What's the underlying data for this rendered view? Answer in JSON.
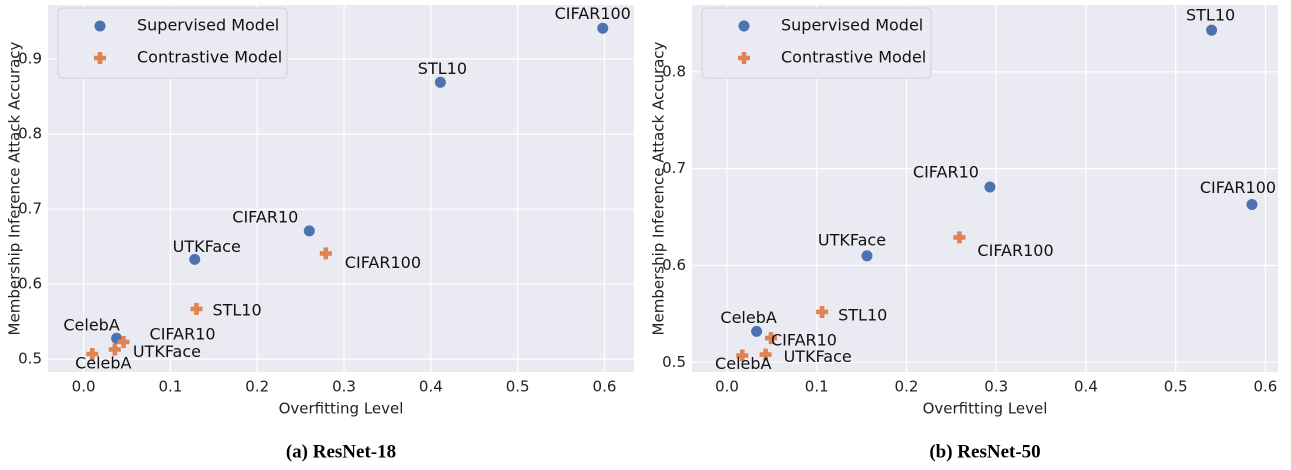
{
  "chart_data": [
    {
      "type": "scatter",
      "caption": "(a) ResNet-18",
      "xlabel": "Overfitting Level",
      "ylabel": "Membership Inference Attack Accuracy",
      "xlim": [
        -0.041,
        0.634
      ],
      "ylim": [
        0.483,
        0.972
      ],
      "xticks": [
        {
          "value": 0,
          "label": "0.0"
        },
        0.1,
        0.2,
        0.3,
        0.4,
        0.5,
        0.6
      ],
      "yticks": [
        0.5,
        0.6,
        0.7,
        0.8,
        0.9
      ],
      "grid": true,
      "legend": "upper left",
      "series": [
        {
          "name": "Supervised Model",
          "color": "#4c72b0",
          "marker": "circle",
          "labels": [
            "CIFAR100",
            "STL10",
            "CIFAR10",
            "UTKFace",
            "CelebA"
          ],
          "x": [
            0.598,
            0.411,
            0.26,
            0.128,
            0.038
          ],
          "values": [
            0.941,
            0.869,
            0.671,
            0.633,
            0.528
          ]
        },
        {
          "name": "Contrastive Model",
          "color": "#dd8452",
          "marker": "plus",
          "labels": [
            "CIFAR100",
            "STL10",
            "CIFAR10",
            "UTKFace",
            "CelebA"
          ],
          "x": [
            0.279,
            0.13,
            0.046,
            0.036,
            0.01
          ],
          "values": [
            0.641,
            0.567,
            0.523,
            0.513,
            0.507
          ]
        }
      ]
    },
    {
      "type": "scatter",
      "caption": "(b) ResNet-50",
      "xlabel": "Overfitting Level",
      "ylabel": "Membership Inference Attack Accuracy",
      "xlim": [
        -0.039,
        0.614
      ],
      "ylim": [
        0.49,
        0.869
      ],
      "xticks": [
        {
          "value": 0,
          "label": "0.0"
        },
        0.1,
        0.2,
        0.3,
        0.4,
        0.5,
        0.6
      ],
      "yticks": [
        0.5,
        0.6,
        0.7,
        0.8
      ],
      "grid": true,
      "legend": "upper left",
      "series": [
        {
          "name": "Supervised Model",
          "color": "#4c72b0",
          "marker": "circle",
          "labels": [
            "STL10",
            "CIFAR10",
            "CIFAR100",
            "UTKFace",
            "CelebA"
          ],
          "x": [
            0.54,
            0.293,
            0.585,
            0.156,
            0.033
          ],
          "values": [
            0.843,
            0.681,
            0.663,
            0.61,
            0.532
          ]
        },
        {
          "name": "Contrastive Model",
          "color": "#dd8452",
          "marker": "plus",
          "labels": [
            "CIFAR100",
            "STL10",
            "CIFAR10",
            "UTKFace",
            "CelebA"
          ],
          "x": [
            0.259,
            0.106,
            0.049,
            0.043,
            0.017
          ],
          "values": [
            0.629,
            0.552,
            0.525,
            0.508,
            0.507
          ]
        }
      ]
    }
  ]
}
